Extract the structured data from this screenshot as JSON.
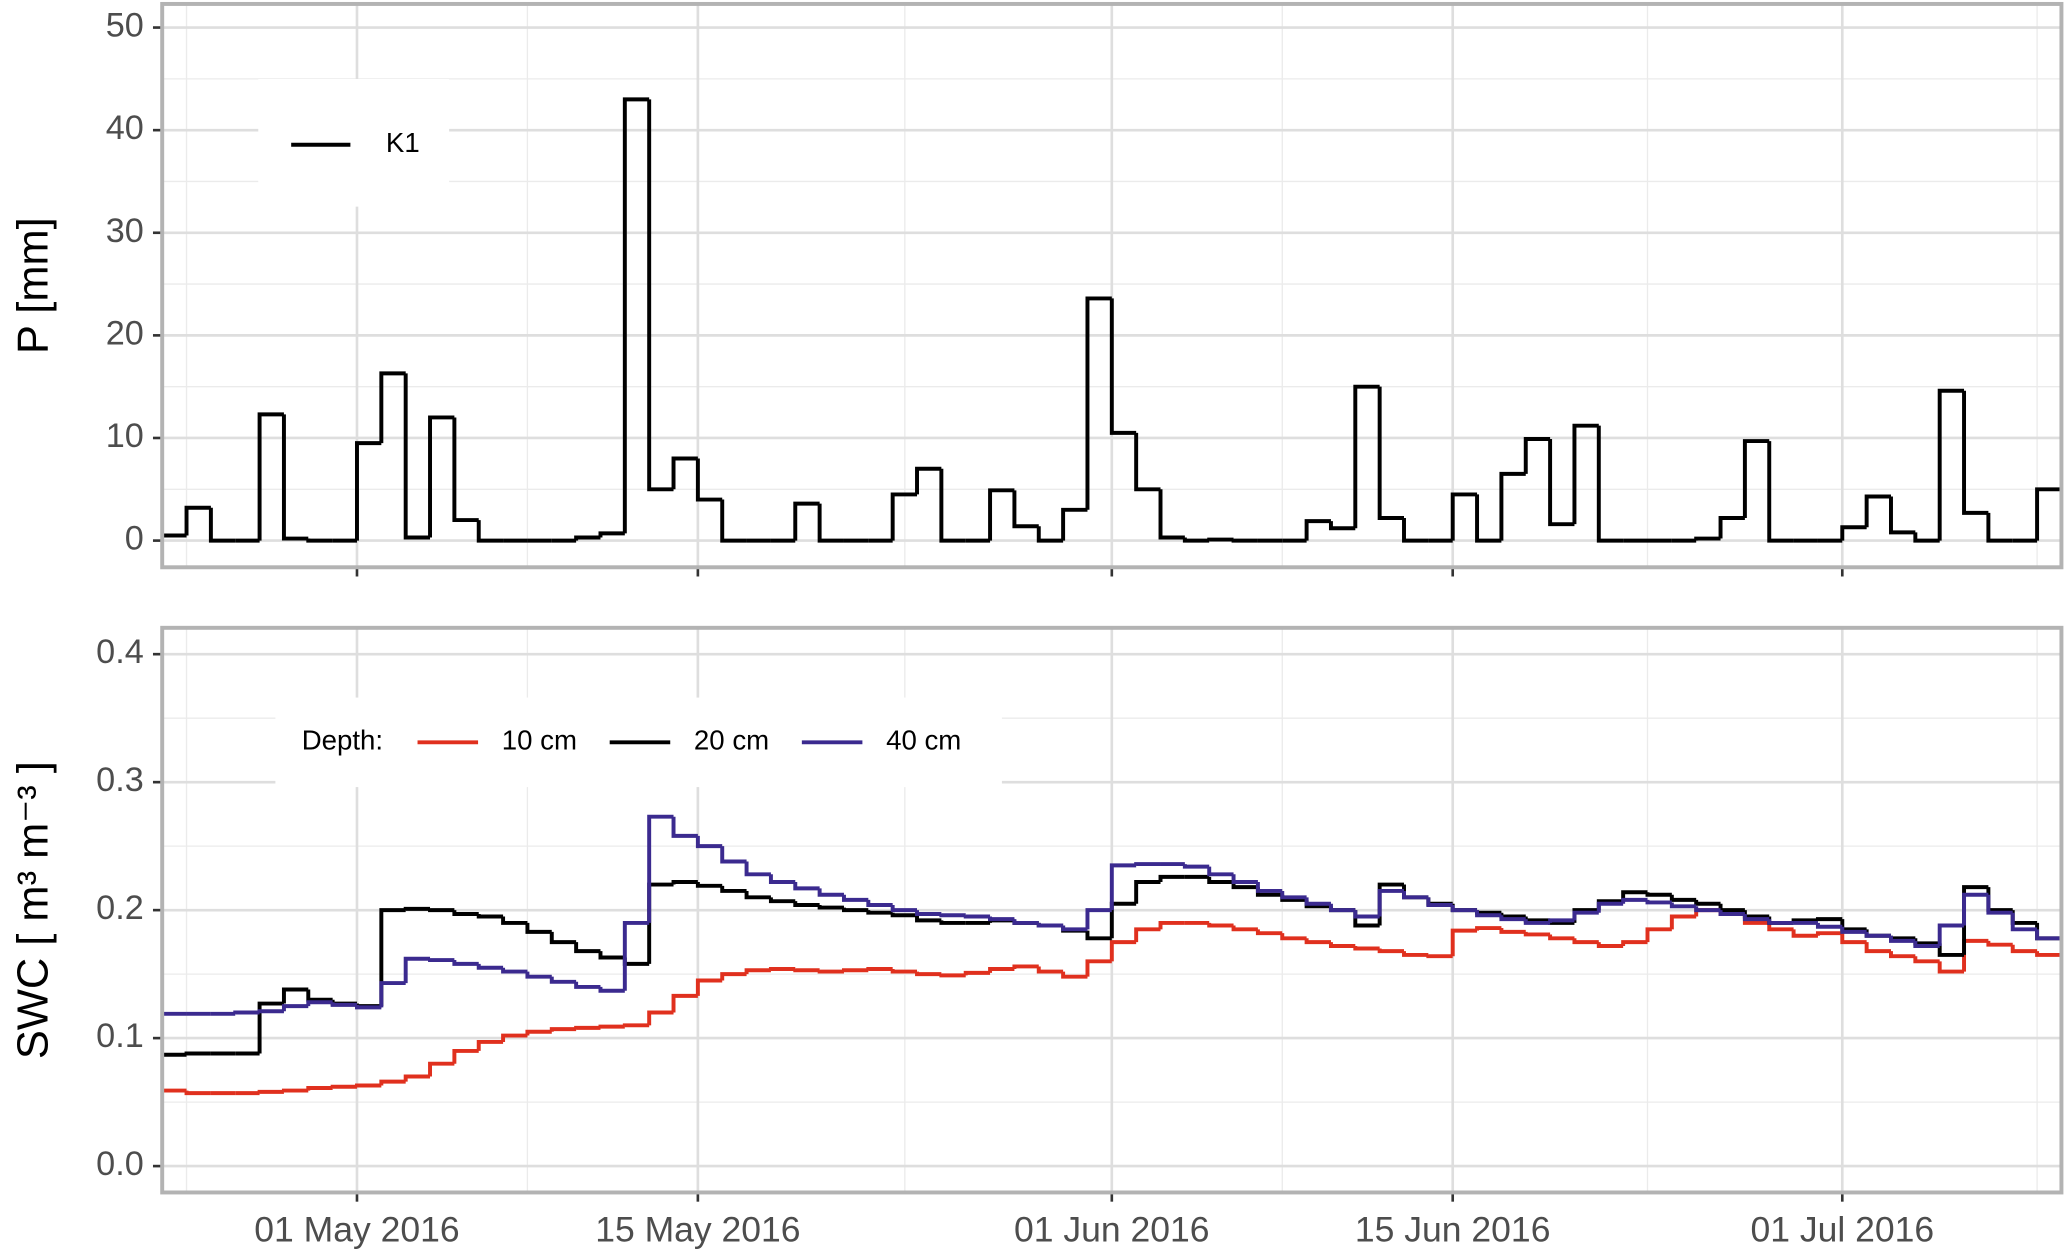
{
  "chart_data": [
    {
      "type": "line",
      "drawstyle": "steps-post",
      "ylabel": "P [mm]",
      "legend": "upper left",
      "grid": true,
      "x": [
        "2016-04-23",
        "2016-04-24",
        "2016-04-25",
        "2016-04-26",
        "2016-04-27",
        "2016-04-28",
        "2016-04-29",
        "2016-04-30",
        "2016-05-01",
        "2016-05-02",
        "2016-05-03",
        "2016-05-04",
        "2016-05-05",
        "2016-05-06",
        "2016-05-07",
        "2016-05-08",
        "2016-05-09",
        "2016-05-10",
        "2016-05-11",
        "2016-05-12",
        "2016-05-13",
        "2016-05-14",
        "2016-05-15",
        "2016-05-16",
        "2016-05-17",
        "2016-05-18",
        "2016-05-19",
        "2016-05-20",
        "2016-05-21",
        "2016-05-22",
        "2016-05-23",
        "2016-05-24",
        "2016-05-25",
        "2016-05-26",
        "2016-05-27",
        "2016-05-28",
        "2016-05-29",
        "2016-05-30",
        "2016-05-31",
        "2016-06-01",
        "2016-06-02",
        "2016-06-03",
        "2016-06-04",
        "2016-06-05",
        "2016-06-06",
        "2016-06-07",
        "2016-06-08",
        "2016-06-09",
        "2016-06-10",
        "2016-06-11",
        "2016-06-12",
        "2016-06-13",
        "2016-06-14",
        "2016-06-15",
        "2016-06-16",
        "2016-06-17",
        "2016-06-18",
        "2016-06-19",
        "2016-06-20",
        "2016-06-21",
        "2016-06-22",
        "2016-06-23",
        "2016-06-24",
        "2016-06-25",
        "2016-06-26",
        "2016-06-27",
        "2016-06-28",
        "2016-06-29",
        "2016-06-30",
        "2016-07-01",
        "2016-07-02",
        "2016-07-03",
        "2016-07-04",
        "2016-07-05",
        "2016-07-06",
        "2016-07-07",
        "2016-07-08",
        "2016-07-09"
      ],
      "series": [
        {
          "name": "K1",
          "color": "#000000",
          "values": [
            0.5,
            3.2,
            0,
            0,
            12.3,
            0.2,
            0,
            0,
            9.5,
            16.3,
            0.3,
            12,
            2,
            0,
            0,
            0,
            0,
            0.3,
            0.7,
            43,
            5,
            8,
            4,
            0,
            0,
            0,
            3.6,
            0,
            0,
            0,
            4.5,
            7,
            0,
            0,
            4.9,
            1.4,
            0,
            3,
            23.6,
            10.5,
            5,
            0.3,
            0,
            0.1,
            0,
            0,
            0,
            1.9,
            1.2,
            15,
            2.2,
            0,
            0,
            4.5,
            0,
            6.5,
            9.9,
            1.6,
            11.2,
            0,
            0,
            0,
            0,
            0.2,
            2.2,
            9.7,
            0,
            0,
            0,
            1.3,
            4.3,
            0.8,
            0,
            14.6,
            2.7,
            0,
            0,
            5
          ]
        }
      ],
      "xlim": [
        "2016-04-23",
        "2016-07-10"
      ],
      "xticks": [
        {
          "value": "2016-05-01",
          "label": "01 May 2016"
        },
        {
          "value": "2016-05-15",
          "label": "15 May 2016"
        },
        {
          "value": "2016-06-01",
          "label": "01 Jun 2016"
        },
        {
          "value": "2016-06-15",
          "label": "15 Jun 2016"
        },
        {
          "value": "2016-07-01",
          "label": "01 Jul 2016"
        }
      ],
      "xtick_labels_shown": false,
      "ylim": [
        -2.6,
        52.3
      ],
      "yticks": [
        0,
        10,
        20,
        30,
        40,
        50
      ]
    },
    {
      "type": "line",
      "drawstyle": "steps-post",
      "ylabel": "SWC [ m³ m⁻³ ]",
      "legend": "upper left",
      "legend_title": "Depth:",
      "grid": true,
      "x": [
        "2016-04-23",
        "2016-04-24",
        "2016-04-25",
        "2016-04-26",
        "2016-04-27",
        "2016-04-28",
        "2016-04-29",
        "2016-04-30",
        "2016-05-01",
        "2016-05-02",
        "2016-05-03",
        "2016-05-04",
        "2016-05-05",
        "2016-05-06",
        "2016-05-07",
        "2016-05-08",
        "2016-05-09",
        "2016-05-10",
        "2016-05-11",
        "2016-05-12",
        "2016-05-13",
        "2016-05-14",
        "2016-05-15",
        "2016-05-16",
        "2016-05-17",
        "2016-05-18",
        "2016-05-19",
        "2016-05-20",
        "2016-05-21",
        "2016-05-22",
        "2016-05-23",
        "2016-05-24",
        "2016-05-25",
        "2016-05-26",
        "2016-05-27",
        "2016-05-28",
        "2016-05-29",
        "2016-05-30",
        "2016-05-31",
        "2016-06-01",
        "2016-06-02",
        "2016-06-03",
        "2016-06-04",
        "2016-06-05",
        "2016-06-06",
        "2016-06-07",
        "2016-06-08",
        "2016-06-09",
        "2016-06-10",
        "2016-06-11",
        "2016-06-12",
        "2016-06-13",
        "2016-06-14",
        "2016-06-15",
        "2016-06-16",
        "2016-06-17",
        "2016-06-18",
        "2016-06-19",
        "2016-06-20",
        "2016-06-21",
        "2016-06-22",
        "2016-06-23",
        "2016-06-24",
        "2016-06-25",
        "2016-06-26",
        "2016-06-27",
        "2016-06-28",
        "2016-06-29",
        "2016-06-30",
        "2016-07-01",
        "2016-07-02",
        "2016-07-03",
        "2016-07-04",
        "2016-07-05",
        "2016-07-06",
        "2016-07-07",
        "2016-07-08",
        "2016-07-09"
      ],
      "series": [
        {
          "name": "10 cm",
          "color": "#e0301e",
          "values": [
            0.059,
            0.057,
            0.057,
            0.057,
            0.058,
            0.059,
            0.061,
            0.062,
            0.063,
            0.066,
            0.07,
            0.08,
            0.09,
            0.097,
            0.102,
            0.105,
            0.107,
            0.108,
            0.109,
            0.11,
            0.12,
            0.133,
            0.145,
            0.15,
            0.153,
            0.154,
            0.153,
            0.152,
            0.153,
            0.154,
            0.152,
            0.15,
            0.149,
            0.151,
            0.154,
            0.156,
            0.152,
            0.148,
            0.16,
            0.175,
            0.185,
            0.19,
            0.19,
            0.188,
            0.185,
            0.182,
            0.178,
            0.175,
            0.172,
            0.17,
            0.168,
            0.165,
            0.164,
            0.184,
            0.186,
            0.183,
            0.181,
            0.178,
            0.175,
            0.172,
            0.175,
            0.185,
            0.195,
            0.2,
            0.197,
            0.19,
            0.185,
            0.18,
            0.182,
            0.175,
            0.168,
            0.164,
            0.16,
            0.152,
            0.176,
            0.173,
            0.168,
            0.165
          ]
        },
        {
          "name": "20 cm",
          "color": "#000000",
          "values": [
            0.087,
            0.088,
            0.088,
            0.088,
            0.127,
            0.138,
            0.13,
            0.127,
            0.125,
            0.2,
            0.201,
            0.2,
            0.197,
            0.195,
            0.19,
            0.183,
            0.175,
            0.168,
            0.163,
            0.158,
            0.22,
            0.222,
            0.219,
            0.215,
            0.21,
            0.207,
            0.204,
            0.202,
            0.2,
            0.198,
            0.196,
            0.192,
            0.19,
            0.19,
            0.192,
            0.19,
            0.188,
            0.184,
            0.178,
            0.205,
            0.222,
            0.226,
            0.226,
            0.222,
            0.218,
            0.212,
            0.208,
            0.203,
            0.2,
            0.188,
            0.22,
            0.21,
            0.205,
            0.2,
            0.198,
            0.195,
            0.192,
            0.19,
            0.2,
            0.207,
            0.214,
            0.212,
            0.208,
            0.205,
            0.2,
            0.195,
            0.19,
            0.192,
            0.193,
            0.185,
            0.18,
            0.178,
            0.174,
            0.165,
            0.218,
            0.2,
            0.19,
            0.178
          ]
        },
        {
          "name": "40 cm",
          "color": "#3b2a8f",
          "values": [
            0.119,
            0.119,
            0.119,
            0.12,
            0.121,
            0.125,
            0.128,
            0.126,
            0.124,
            0.143,
            0.162,
            0.161,
            0.158,
            0.155,
            0.152,
            0.148,
            0.144,
            0.14,
            0.137,
            0.19,
            0.273,
            0.258,
            0.25,
            0.238,
            0.228,
            0.222,
            0.217,
            0.212,
            0.208,
            0.204,
            0.2,
            0.197,
            0.196,
            0.195,
            0.193,
            0.19,
            0.188,
            0.185,
            0.2,
            0.235,
            0.236,
            0.236,
            0.234,
            0.228,
            0.222,
            0.215,
            0.21,
            0.205,
            0.2,
            0.195,
            0.215,
            0.21,
            0.204,
            0.2,
            0.196,
            0.193,
            0.19,
            0.192,
            0.198,
            0.205,
            0.208,
            0.206,
            0.203,
            0.2,
            0.197,
            0.193,
            0.19,
            0.19,
            0.187,
            0.183,
            0.18,
            0.176,
            0.172,
            0.188,
            0.212,
            0.198,
            0.185,
            0.178
          ]
        }
      ],
      "xlim": [
        "2016-04-23",
        "2016-07-10"
      ],
      "xticks": [
        {
          "value": "2016-05-01",
          "label": "01 May 2016"
        },
        {
          "value": "2016-05-15",
          "label": "15 May 2016"
        },
        {
          "value": "2016-06-01",
          "label": "01 Jun 2016"
        },
        {
          "value": "2016-06-15",
          "label": "15 Jun 2016"
        },
        {
          "value": "2016-07-01",
          "label": "01 Jul 2016"
        }
      ],
      "xtick_labels_shown": true,
      "ylim": [
        -0.0206,
        0.4206
      ],
      "yticks": [
        {
          "value": 0,
          "label": "0.0"
        },
        0.1,
        0.2,
        0.3,
        0.4
      ]
    }
  ]
}
